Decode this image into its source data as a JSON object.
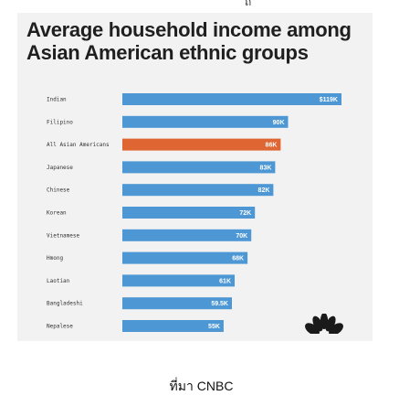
{
  "top_fragment": "ถึ",
  "caption": "ที่มา CNBC",
  "colors": {
    "bar_default": "#4d97d4",
    "bar_highlight": "#df6532",
    "card_bg": "#f2f2f2",
    "logo": "#1a1a1a"
  },
  "logo_icon": "nbc-peacock-icon",
  "chart_data": {
    "type": "bar",
    "orientation": "horizontal",
    "title": "Average household income among Asian American ethnic groups",
    "categories": [
      "Indian",
      "Filipino",
      "All Asian Americans",
      "Japanese",
      "Chinese",
      "Korean",
      "Vietnamese",
      "Hmong",
      "Laotian",
      "Bangladeshi",
      "Nepalese"
    ],
    "values": [
      119,
      90,
      86,
      83,
      82,
      72,
      70,
      68,
      61,
      59.5,
      55
    ],
    "value_labels": [
      "$119K",
      "90K",
      "86K",
      "83K",
      "82K",
      "72K",
      "70K",
      "68K",
      "61K",
      "59.5K",
      "55K"
    ],
    "highlight": "All Asian Americans",
    "unit": "K (thousands USD)",
    "xlim": [
      0,
      119
    ],
    "grid": false,
    "legend": "none"
  }
}
